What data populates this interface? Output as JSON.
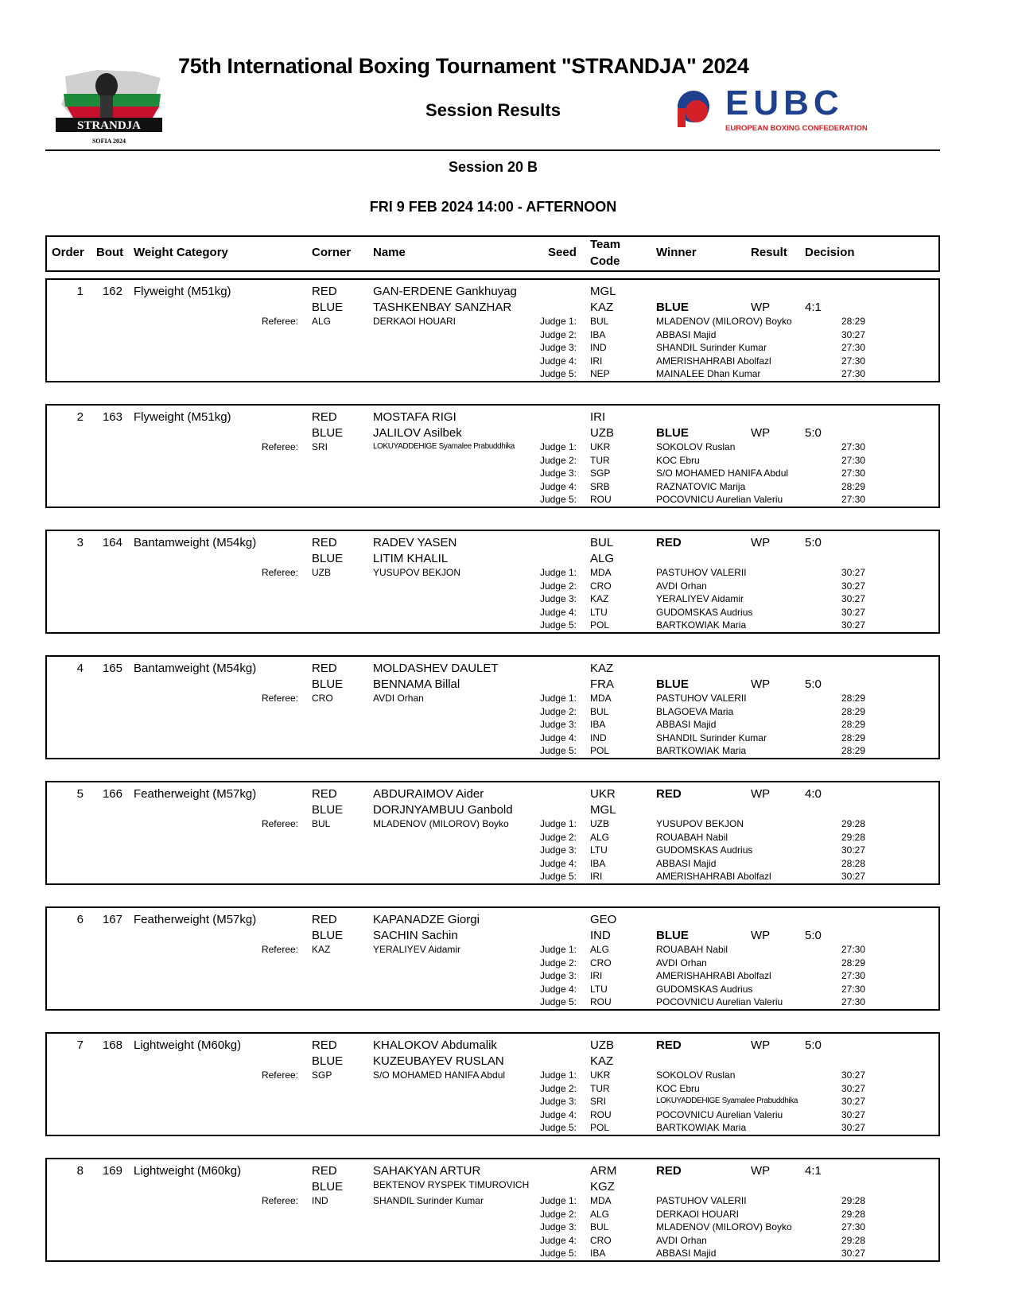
{
  "header": {
    "title": "75th International Boxing Tournament \"STRANDJA\" 2024",
    "subtitle": "Session Results",
    "session": "Session 20 B",
    "datetime": "FRI 9 FEB 2024  14:00 - AFTERNOON",
    "logo_left": {
      "text": "STRANDJA",
      "subtext": "SOFIA 2024",
      "arc": "INTERNATIONAL BOXING TOURNAMENT"
    },
    "logo_right": {
      "text": "EUBC",
      "subtext": "EUROPEAN BOXING CONFEDERATION",
      "color": "#1f3f8f",
      "accent": "#d62027"
    }
  },
  "columns": {
    "order": "Order",
    "bout": "Bout",
    "weight": "Weight Category",
    "corner": "Corner",
    "name": "Name",
    "seed": "Seed",
    "team1": "Team",
    "team2": "Code",
    "winner": "Winner",
    "result": "Result",
    "decision": "Decision"
  },
  "labels": {
    "referee": "Referee:",
    "judge_prefix": "Judge"
  },
  "bouts": [
    {
      "order": "1",
      "bout": "162",
      "weight": "Flyweight (M51kg)",
      "red": {
        "corner": "RED",
        "name": "GAN-ERDENE Gankhuyag",
        "team": "MGL"
      },
      "blue": {
        "corner": "BLUE",
        "name": "TASHKENBAY SANZHAR",
        "team": "KAZ"
      },
      "winner": "BLUE",
      "result": "WP",
      "decision": "4:1",
      "referee": {
        "country": "ALG",
        "name": "DERKAOI HOUARI"
      },
      "judges": [
        {
          "label": "Judge 1:",
          "country": "BUL",
          "name": "MLADENOV (MILOROV) Boyko",
          "score": "28:29"
        },
        {
          "label": "Judge 2:",
          "country": "IBA",
          "name": "ABBASI Majid",
          "score": "30:27"
        },
        {
          "label": "Judge 3:",
          "country": "IND",
          "name": "SHANDIL Surinder Kumar",
          "score": "27:30"
        },
        {
          "label": "Judge 4:",
          "country": "IRI",
          "name": "AMERISHAHRABI Abolfazl",
          "score": "27:30"
        },
        {
          "label": "Judge 5:",
          "country": "NEP",
          "name": "MAINALEE Dhan Kumar",
          "score": "27:30"
        }
      ]
    },
    {
      "order": "2",
      "bout": "163",
      "weight": "Flyweight (M51kg)",
      "red": {
        "corner": "RED",
        "name": "MOSTAFA RIGI",
        "team": "IRI"
      },
      "blue": {
        "corner": "BLUE",
        "name": "JALILOV Asilbek",
        "team": "UZB"
      },
      "winner": "BLUE",
      "result": "WP",
      "decision": "5:0",
      "referee": {
        "country": "SRI",
        "name": "LOKUYADDEHIGE Syamalee Prabuddhika",
        "tiny": true
      },
      "judges": [
        {
          "label": "Judge 1:",
          "country": "UKR",
          "name": "SOKOLOV Ruslan",
          "score": "27:30"
        },
        {
          "label": "Judge 2:",
          "country": "TUR",
          "name": "KOC Ebru",
          "score": "27:30"
        },
        {
          "label": "Judge 3:",
          "country": "SGP",
          "name": "S/O MOHAMED HANIFA Abdul",
          "score": "27:30"
        },
        {
          "label": "Judge 4:",
          "country": "SRB",
          "name": "RAZNATOVIC Marija",
          "score": "28:29"
        },
        {
          "label": "Judge 5:",
          "country": "ROU",
          "name": "POCOVNICU Aurelian Valeriu",
          "score": "27:30"
        }
      ]
    },
    {
      "order": "3",
      "bout": "164",
      "weight": "Bantamweight (M54kg)",
      "red": {
        "corner": "RED",
        "name": "RADEV YASEN",
        "team": "BUL"
      },
      "blue": {
        "corner": "BLUE",
        "name": "LITIM KHALIL",
        "team": "ALG"
      },
      "winner": "RED",
      "result": "WP",
      "decision": "5:0",
      "referee": {
        "country": "UZB",
        "name": "YUSUPOV BEKJON"
      },
      "judges": [
        {
          "label": "Judge 1:",
          "country": "MDA",
          "name": "PASTUHOV VALERII",
          "score": "30:27"
        },
        {
          "label": "Judge 2:",
          "country": "CRO",
          "name": "AVDI Orhan",
          "score": "30:27"
        },
        {
          "label": "Judge 3:",
          "country": "KAZ",
          "name": "YERALIYEV Aidamir",
          "score": "30:27"
        },
        {
          "label": "Judge 4:",
          "country": "LTU",
          "name": "GUDOMSKAS Audrius",
          "score": "30:27"
        },
        {
          "label": "Judge 5:",
          "country": "POL",
          "name": "BARTKOWIAK Maria",
          "score": "30:27"
        }
      ]
    },
    {
      "order": "4",
      "bout": "165",
      "weight": "Bantamweight (M54kg)",
      "red": {
        "corner": "RED",
        "name": "MOLDASHEV DAULET",
        "team": "KAZ"
      },
      "blue": {
        "corner": "BLUE",
        "name": "BENNAMA Billal",
        "team": "FRA"
      },
      "winner": "BLUE",
      "result": "WP",
      "decision": "5:0",
      "referee": {
        "country": "CRO",
        "name": "AVDI Orhan"
      },
      "judges": [
        {
          "label": "Judge 1:",
          "country": "MDA",
          "name": "PASTUHOV VALERII",
          "score": "28:29"
        },
        {
          "label": "Judge 2:",
          "country": "BUL",
          "name": "BLAGOEVA Maria",
          "score": "28:29"
        },
        {
          "label": "Judge 3:",
          "country": "IBA",
          "name": "ABBASI Majid",
          "score": "28:29"
        },
        {
          "label": "Judge 4:",
          "country": "IND",
          "name": "SHANDIL Surinder Kumar",
          "score": "28:29"
        },
        {
          "label": "Judge 5:",
          "country": "POL",
          "name": "BARTKOWIAK Maria",
          "score": "28:29"
        }
      ]
    },
    {
      "order": "5",
      "bout": "166",
      "weight": "Featherweight (M57kg)",
      "red": {
        "corner": "RED",
        "name": "ABDURAIMOV Aider",
        "team": "UKR"
      },
      "blue": {
        "corner": "BLUE",
        "name": "DORJNYAMBUU Ganbold",
        "team": "MGL"
      },
      "winner": "RED",
      "result": "WP",
      "decision": "4:0",
      "referee": {
        "country": "BUL",
        "name": "MLADENOV (MILOROV) Boyko"
      },
      "judges": [
        {
          "label": "Judge 1:",
          "country": "UZB",
          "name": "YUSUPOV BEKJON",
          "score": "29:28"
        },
        {
          "label": "Judge 2:",
          "country": "ALG",
          "name": "ROUABAH Nabil",
          "score": "29:28"
        },
        {
          "label": "Judge 3:",
          "country": "LTU",
          "name": "GUDOMSKAS Audrius",
          "score": "30:27"
        },
        {
          "label": "Judge 4:",
          "country": "IBA",
          "name": "ABBASI Majid",
          "score": "28:28"
        },
        {
          "label": "Judge 5:",
          "country": "IRI",
          "name": "AMERISHAHRABI Abolfazl",
          "score": "30:27"
        }
      ]
    },
    {
      "order": "6",
      "bout": "167",
      "weight": "Featherweight (M57kg)",
      "red": {
        "corner": "RED",
        "name": "KAPANADZE Giorgi",
        "team": "GEO"
      },
      "blue": {
        "corner": "BLUE",
        "name": "SACHIN Sachin",
        "team": "IND"
      },
      "winner": "BLUE",
      "result": "WP",
      "decision": "5:0",
      "referee": {
        "country": "KAZ",
        "name": "YERALIYEV Aidamir"
      },
      "judges": [
        {
          "label": "Judge 1:",
          "country": "ALG",
          "name": "ROUABAH Nabil",
          "score": "27:30"
        },
        {
          "label": "Judge 2:",
          "country": "CRO",
          "name": "AVDI Orhan",
          "score": "28:29"
        },
        {
          "label": "Judge 3:",
          "country": "IRI",
          "name": "AMERISHAHRABI Abolfazl",
          "score": "27:30"
        },
        {
          "label": "Judge 4:",
          "country": "LTU",
          "name": "GUDOMSKAS Audrius",
          "score": "27:30"
        },
        {
          "label": "Judge 5:",
          "country": "ROU",
          "name": "POCOVNICU Aurelian Valeriu",
          "score": "27:30"
        }
      ]
    },
    {
      "order": "7",
      "bout": "168",
      "weight": "Lightweight (M60kg)",
      "red": {
        "corner": "RED",
        "name": "KHALOKOV Abdumalik",
        "team": "UZB"
      },
      "blue": {
        "corner": "BLUE",
        "name": "KUZEUBAYEV RUSLAN",
        "team": "KAZ"
      },
      "winner": "RED",
      "result": "WP",
      "decision": "5:0",
      "referee": {
        "country": "SGP",
        "name": "S/O MOHAMED HANIFA Abdul"
      },
      "judges": [
        {
          "label": "Judge 1:",
          "country": "UKR",
          "name": "SOKOLOV Ruslan",
          "score": "30:27"
        },
        {
          "label": "Judge 2:",
          "country": "TUR",
          "name": "KOC Ebru",
          "score": "30:27"
        },
        {
          "label": "Judge 3:",
          "country": "SRI",
          "name": "LOKUYADDEHIGE Syamalee Prabuddhika",
          "score": "30:27",
          "tiny": true
        },
        {
          "label": "Judge 4:",
          "country": "ROU",
          "name": "POCOVNICU Aurelian Valeriu",
          "score": "30:27"
        },
        {
          "label": "Judge 5:",
          "country": "POL",
          "name": "BARTKOWIAK Maria",
          "score": "30:27"
        }
      ]
    },
    {
      "order": "8",
      "bout": "169",
      "weight": "Lightweight (M60kg)",
      "red": {
        "corner": "RED",
        "name": "SAHAKYAN  ARTUR",
        "team": "ARM"
      },
      "blue": {
        "corner": "BLUE",
        "name": "BEKTENOV RYSPEK TIMUROVICH",
        "team": "KGZ"
      },
      "winner": "RED",
      "result": "WP",
      "decision": "4:1",
      "referee": {
        "country": "IND",
        "name": "SHANDIL Surinder Kumar"
      },
      "judges": [
        {
          "label": "Judge 1:",
          "country": "MDA",
          "name": "PASTUHOV VALERII",
          "score": "29:28"
        },
        {
          "label": "Judge 2:",
          "country": "ALG",
          "name": "DERKAOI HOUARI",
          "score": "29:28"
        },
        {
          "label": "Judge 3:",
          "country": "BUL",
          "name": "MLADENOV (MILOROV) Boyko",
          "score": "27:30"
        },
        {
          "label": "Judge 4:",
          "country": "CRO",
          "name": "AVDI Orhan",
          "score": "29:28"
        },
        {
          "label": "Judge 5:",
          "country": "IBA",
          "name": "ABBASI Majid",
          "score": "30:27"
        }
      ]
    }
  ]
}
